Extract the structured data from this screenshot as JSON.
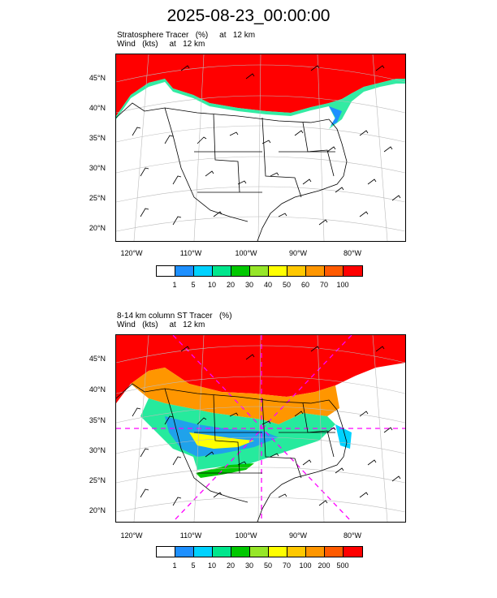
{
  "title": "2025-08-23_00:00:00",
  "panels": [
    {
      "caption_line1": "Stratosphere Tracer   (%)     at   12 km",
      "caption_line2": "Wind   (kts)     at   12 km",
      "colorbar_labels": [
        "1",
        "5",
        "10",
        "20",
        "30",
        "40",
        "50",
        "60",
        "70",
        "100"
      ]
    },
    {
      "caption_line1": "8-14 km column ST Tracer   (%)",
      "caption_line2": "Wind   (kts)     at   12 km",
      "colorbar_labels": [
        "1",
        "5",
        "10",
        "20",
        "30",
        "50",
        "70",
        "100",
        "200",
        "500"
      ]
    }
  ],
  "lat_labels": [
    "45°N",
    "40°N",
    "35°N",
    "30°N",
    "25°N",
    "20°N"
  ],
  "lon_labels": [
    "120°W",
    "110°W",
    "100°W",
    "90°W",
    "80°W"
  ],
  "colorbar_colors": [
    "#ffffff",
    "#1e90ff",
    "#00d2ff",
    "#00e68c",
    "#00c800",
    "#96e628",
    "#ffff00",
    "#ffc800",
    "#ff9600",
    "#ff5a00",
    "#ff0000"
  ]
}
